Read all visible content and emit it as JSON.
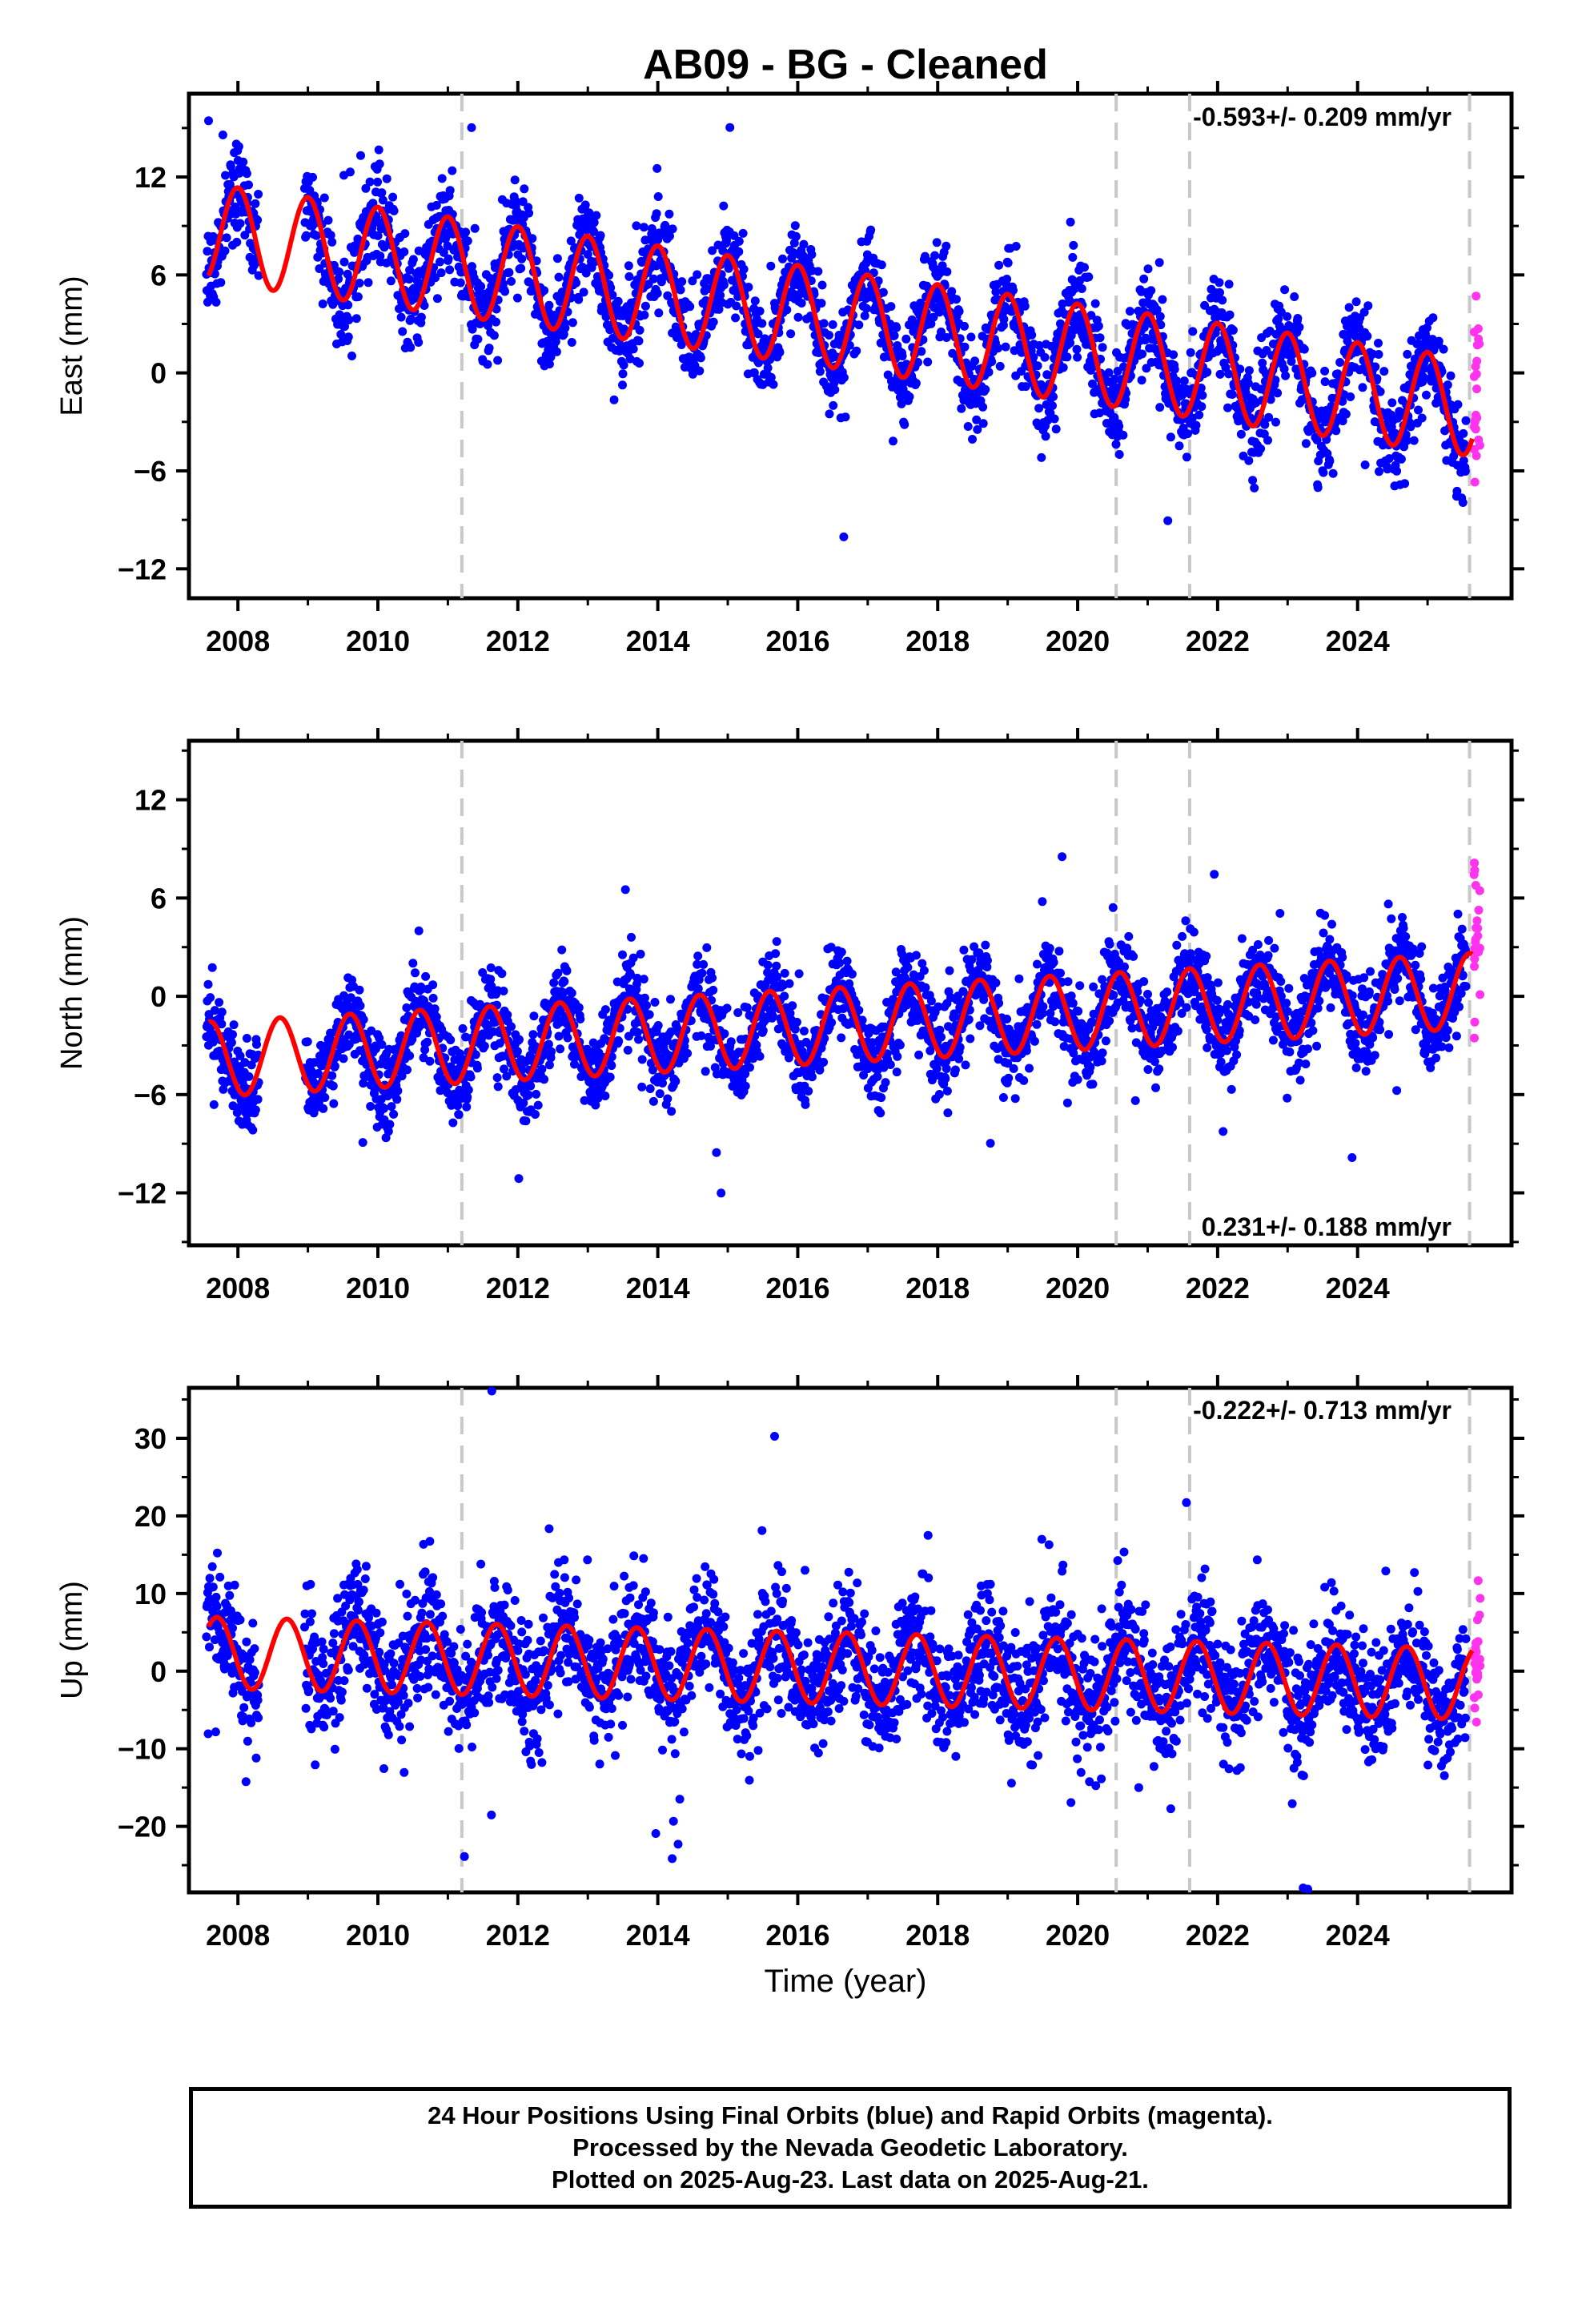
{
  "title": "AB09  - BG - Cleaned",
  "colors": {
    "final_orbits": "#0000ff",
    "rapid_orbits": "#ff33ee",
    "model": "#ff0000",
    "event_lines": "#c8c8c8",
    "axis": "#000000"
  },
  "xlabel": "Time (year)",
  "caption": [
    "24 Hour Positions Using Final Orbits (blue) and Rapid Orbits (magenta).",
    "Processed by the Nevada Geodetic Laboratory.",
    "Plotted on 2025-Aug-23. Last data on 2025-Aug-21."
  ],
  "chart_data": [
    {
      "type": "scatter",
      "ylabel": "East (mm)",
      "rate_label": "-0.593+/- 0.209 mm/yr",
      "rate_position": "top-right",
      "xlim": [
        2007.3,
        2026.2
      ],
      "ylim": [
        -13.8,
        17.1
      ],
      "xticks": [
        "2008",
        "2010",
        "2012",
        "2014",
        "2016",
        "2018",
        "2020",
        "2022",
        "2024"
      ],
      "yticks": [
        "12",
        "6",
        "0",
        "−6",
        "−12"
      ],
      "yticks_values": [
        12,
        6,
        0,
        -6,
        -12
      ],
      "event_lines": [
        2011.2,
        2020.55,
        2021.6,
        2025.6
      ],
      "series": [
        {
          "kind": "final_orbits_points",
          "start": 2007.55,
          "end": 2025.55,
          "slope": -0.593,
          "intercept": 3.6,
          "annual_amp": 3.0,
          "annual_peak": 0.0,
          "scatter": 2.4,
          "seed": 11
        },
        {
          "kind": "rapid_orbits_points",
          "start": 2025.55,
          "end": 2025.64,
          "center": -1.5,
          "scatter": 3.5,
          "seed": 12
        },
        {
          "kind": "model_curve",
          "start": 2007.58,
          "end": 2025.64,
          "slope": -0.593,
          "intercept": 3.6,
          "annual_amp": 3.0,
          "annual_peak": 0.0
        }
      ]
    },
    {
      "type": "scatter",
      "ylabel": "North (mm)",
      "rate_label": "0.231+/- 0.188 mm/yr",
      "rate_position": "bottom-right",
      "xlim": [
        2007.3,
        2026.2
      ],
      "ylim": [
        -15.2,
        15.6
      ],
      "xticks": [
        "2008",
        "2010",
        "2012",
        "2014",
        "2016",
        "2018",
        "2020",
        "2022",
        "2024"
      ],
      "yticks": [
        "12",
        "6",
        "0",
        "−6",
        "−12"
      ],
      "yticks_values": [
        12,
        6,
        0,
        -6,
        -12
      ],
      "event_lines": [
        2011.2,
        2020.55,
        2021.6,
        2025.6
      ],
      "series": [
        {
          "kind": "final_orbits_points",
          "start": 2007.55,
          "end": 2025.55,
          "slope": 0.231,
          "intercept": -1.9,
          "annual_amp": 2.3,
          "annual_peak": 0.6,
          "scatter": 2.2,
          "seed": 21
        },
        {
          "kind": "rapid_orbits_points",
          "start": 2025.55,
          "end": 2025.64,
          "center": 3.5,
          "scatter": 2.8,
          "seed": 22
        },
        {
          "kind": "model_curve",
          "start": 2007.58,
          "end": 2025.64,
          "slope": 0.231,
          "intercept": -1.9,
          "annual_amp": 2.3,
          "annual_peak": 0.6
        }
      ]
    },
    {
      "type": "scatter",
      "ylabel": "Up (mm)",
      "rate_label": "-0.222+/- 0.713 mm/yr",
      "rate_position": "top-right",
      "xlim": [
        2007.3,
        2026.2
      ],
      "ylim": [
        -28.5,
        36.5
      ],
      "xticks": [
        "2008",
        "2010",
        "2012",
        "2014",
        "2016",
        "2018",
        "2020",
        "2022",
        "2024"
      ],
      "yticks": [
        "30",
        "20",
        "10",
        "0",
        "−10",
        "−20"
      ],
      "yticks_values": [
        30,
        20,
        10,
        0,
        -10,
        -20
      ],
      "event_lines": [
        2011.2,
        2020.55,
        2021.6,
        2025.6
      ],
      "series": [
        {
          "kind": "final_orbits_points",
          "start": 2007.55,
          "end": 2025.55,
          "slope": -0.222,
          "intercept": 0.5,
          "annual_amp": 4.6,
          "annual_peak": 0.7,
          "scatter": 6.5,
          "seed": 31
        },
        {
          "kind": "rapid_orbits_points",
          "start": 2025.55,
          "end": 2025.64,
          "center": 0.0,
          "scatter": 5.5,
          "seed": 32
        },
        {
          "kind": "model_curve",
          "start": 2007.58,
          "end": 2025.64,
          "slope": -0.222,
          "intercept": 0.5,
          "annual_amp": 4.6,
          "annual_peak": 0.7
        }
      ]
    }
  ]
}
